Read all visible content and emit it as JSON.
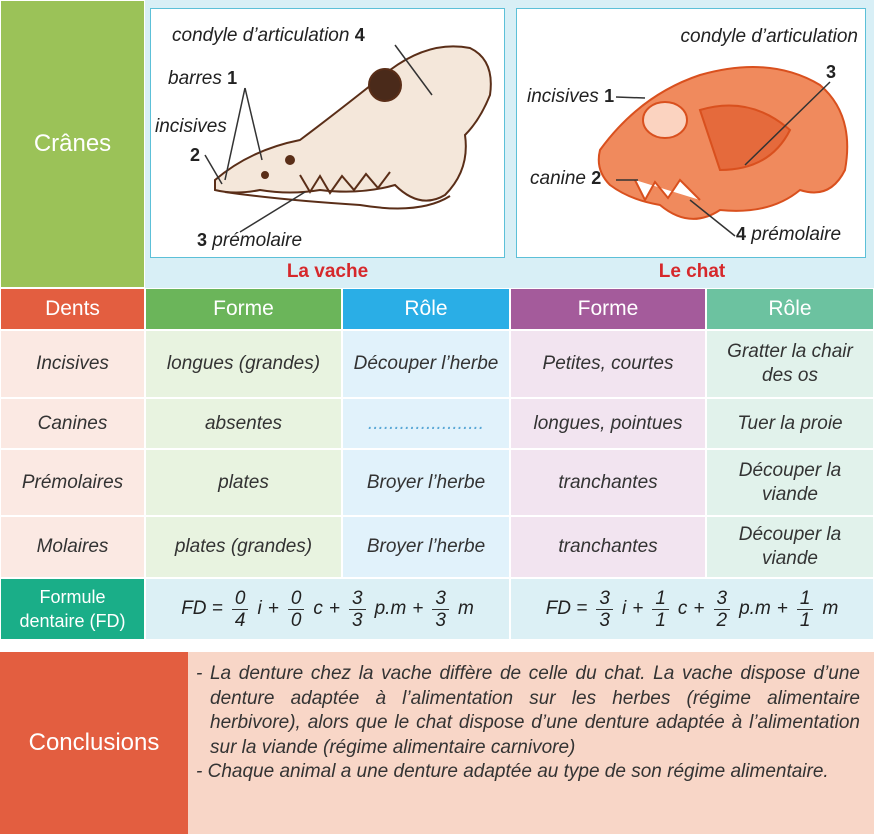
{
  "skulls": {
    "label": "Crânes",
    "cow": {
      "caption": "La vache",
      "labels": [
        {
          "text": "condyle d’articulation",
          "number": "4"
        },
        {
          "text": "barres",
          "number": "1"
        },
        {
          "text": "incisives",
          "number": "2"
        },
        {
          "text": "prémolaire",
          "number": "3"
        }
      ]
    },
    "cat": {
      "caption": "Le chat",
      "labels": [
        {
          "text": "condyle d’articulation",
          "number": "3"
        },
        {
          "text": "incisives",
          "number": "1"
        },
        {
          "text": "canine",
          "number": "2"
        },
        {
          "text": "prémolaire",
          "number": "4"
        }
      ]
    }
  },
  "table": {
    "header": [
      "Dents",
      "Forme",
      "Rôle",
      "Forme",
      "Rôle"
    ],
    "rows": [
      [
        "Incisives",
        "longues (grandes)",
        "Découper l’herbe",
        "Petites, courtes",
        "Gratter la chair des os"
      ],
      [
        "Canines",
        "absentes",
        "......................",
        "longues, pointues",
        "Tuer la proie"
      ],
      [
        "Prémolaires",
        "plates",
        "Broyer l’herbe",
        "tranchantes",
        "Découper la viande"
      ],
      [
        "Molaires",
        "plates (grandes)",
        "Broyer l’herbe",
        "tranchantes",
        "Découper la viande"
      ]
    ]
  },
  "formula": {
    "label": "Formule dentaire (FD)",
    "cow": {
      "lhs": "FD =",
      "terms": [
        {
          "num": "0",
          "den": "4",
          "unit": "i"
        },
        {
          "op": "+",
          "num": "0",
          "den": "0",
          "unit": "c"
        },
        {
          "op": "+",
          "num": "3",
          "den": "3",
          "unit": "p.m"
        },
        {
          "op": "+",
          "num": "3",
          "den": "3",
          "unit": "m"
        }
      ]
    },
    "cat": {
      "lhs": "FD =",
      "terms": [
        {
          "num": "3",
          "den": "3",
          "unit": "i"
        },
        {
          "op": "+",
          "num": "1",
          "den": "1",
          "unit": "c"
        },
        {
          "op": "+",
          "num": "3",
          "den": "2",
          "unit": "p.m"
        },
        {
          "op": "+",
          "num": "1",
          "den": "1",
          "unit": "m"
        }
      ]
    }
  },
  "conclusions": {
    "label": "Conclusions",
    "items": [
      "- La denture chez la vache diffère de celle du chat. La vache dispose d’une denture adaptée à l’alimentation sur les herbes (régime alimentaire herbivore), alors que le chat dispose d’une denture adaptée à l’alimentation sur la viande (régime alimentaire carnivore)",
      "- Chaque animal a une denture adaptée au type de son régime alimentaire."
    ]
  }
}
